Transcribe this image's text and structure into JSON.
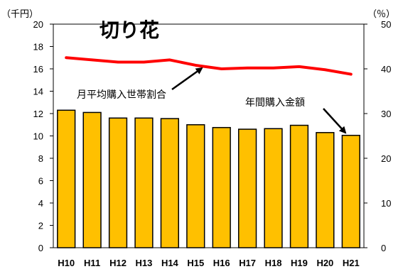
{
  "chart_data": {
    "type": "bar+line",
    "title": "切り花",
    "categories": [
      "H10",
      "H11",
      "H12",
      "H13",
      "H14",
      "H15",
      "H16",
      "H17",
      "H18",
      "H19",
      "H20",
      "H21"
    ],
    "series": [
      {
        "name": "年間購入金額",
        "type": "bar",
        "axis": "left",
        "values": [
          12.3,
          12.1,
          11.6,
          11.6,
          11.55,
          11.0,
          10.75,
          10.6,
          10.65,
          10.95,
          10.3,
          10.05
        ],
        "color": "#FFC000"
      },
      {
        "name": "月平均購入世帯割合",
        "type": "line",
        "axis": "right",
        "values": [
          42.5,
          42.0,
          41.5,
          41.5,
          42.0,
          40.8,
          40.0,
          40.2,
          40.2,
          40.5,
          39.8,
          38.8
        ],
        "color": "#FF0000"
      }
    ],
    "y_left": {
      "unit": "（千円）",
      "min": 0,
      "max": 20,
      "ticks": [
        "0",
        "2",
        "4",
        "6",
        "8",
        "10",
        "12",
        "14",
        "16",
        "18",
        "20"
      ]
    },
    "y_right": {
      "unit": "（％）",
      "min": 0,
      "max": 50,
      "ticks": [
        "0",
        "10",
        "20",
        "30",
        "40",
        "50"
      ]
    },
    "grid": false,
    "legend": "none",
    "annotations": [
      {
        "text": "月平均購入世帯割合",
        "target_series": 1
      },
      {
        "text": "年間購入金額",
        "target_series": 0
      }
    ]
  }
}
